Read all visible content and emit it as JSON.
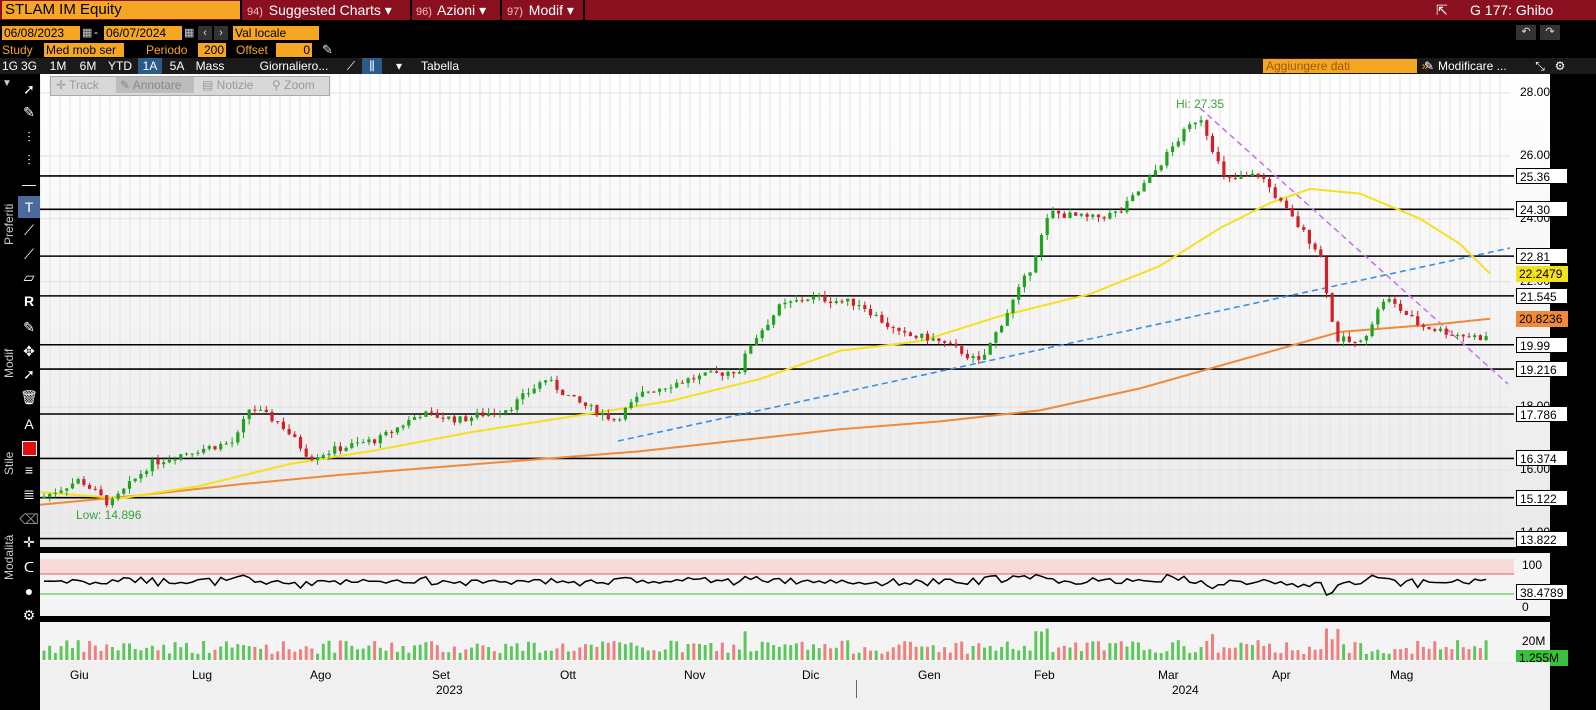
{
  "header": {
    "ticker": "STLAM IM Equity",
    "menu1": {
      "num": "94)",
      "label": "Suggested Charts"
    },
    "menu2": {
      "num": "96)",
      "label": "Azioni"
    },
    "menu3": {
      "num": "97)",
      "label": "Modif"
    },
    "right_label": "G 177: Ghibo"
  },
  "controls": {
    "date_from": "06/08/2023",
    "date_to": "06/07/2024",
    "currency": "Val locale",
    "study_label": "Study",
    "study_value": "Med mob ser",
    "period_label": "Periodo",
    "period_value": "200",
    "offset_label": "Offset",
    "offset_value": "0"
  },
  "ranges": [
    "1G",
    "3G",
    "1M",
    "6M",
    "YTD",
    "1A",
    "5A",
    "Mass"
  ],
  "selected_range": "1A",
  "frequency": "Giornaliero...",
  "table_label": "Tabella",
  "add_data_placeholder": "Aggiungere dati",
  "modify_label": "Modificare ...",
  "tools": {
    "track": "Track",
    "annotate": "Annotare",
    "news": "Notizie",
    "zoom": "Zoom"
  },
  "sidebar_labels": {
    "preferiti": "Preferiti",
    "modif": "Modif",
    "stile": "Stile",
    "modalita": "Modalità"
  },
  "chart_data": {
    "type": "candlestick",
    "price_axis_ticks": [
      "28.00",
      "26.00",
      "24.00",
      "22.00",
      "20.00",
      "18.00",
      "16.00",
      "14.00"
    ],
    "hi_label": "Hi: 27.35",
    "low_label": "Low: 14.896",
    "horizontal_levels": [
      {
        "value": 25.36,
        "label": "25.36"
      },
      {
        "value": 24.3,
        "label": "24.30"
      },
      {
        "value": 22.81,
        "label": "22.81"
      },
      {
        "value": 21.545,
        "label": "21.545"
      },
      {
        "value": 19.99,
        "label": "19.99"
      },
      {
        "value": 19.216,
        "label": "19.216"
      },
      {
        "value": 17.786,
        "label": "17.786"
      },
      {
        "value": 16.374,
        "label": "16.374"
      },
      {
        "value": 15.122,
        "label": "15.122"
      },
      {
        "value": 13.822,
        "label": "13.822"
      }
    ],
    "ma50_last": "22.2479",
    "ma200_last": "20.8236",
    "rsi_ticks": [
      "100",
      "0"
    ],
    "rsi_last": "38.4789",
    "volume_tick": "20M",
    "volume_last": "1.255M",
    "months": [
      "Giu",
      "Lug",
      "Ago",
      "Set",
      "Ott",
      "Nov",
      "Dic",
      "Gen",
      "Feb",
      "Mar",
      "Apr",
      "Mag"
    ],
    "years": [
      "2023",
      "2024"
    ],
    "colors": {
      "up": "#1fa31f",
      "down": "#d0202a",
      "ma50": "#f5e020",
      "ma200": "#f08a3a",
      "trend_blue": "#3a8ee8",
      "trend_purple": "#c878e8"
    }
  }
}
